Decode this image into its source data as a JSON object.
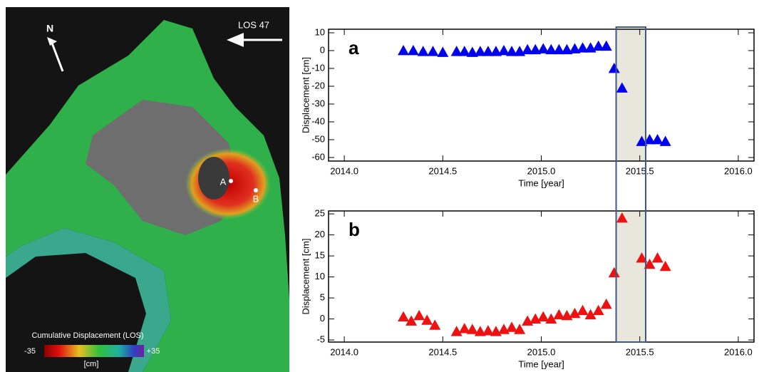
{
  "map": {
    "north": "N",
    "los": "LOS 47",
    "points": [
      "A",
      "B"
    ],
    "colorbar": {
      "title": "Cumulative Displacement (LOS)",
      "ticks": [
        -35,
        {
          "value": 35,
          "label": "+35"
        }
      ],
      "unit": "[cm]"
    }
  },
  "chart_data": [
    {
      "type": "scatter",
      "panel": "a",
      "xlabel": "Time [year]",
      "ylabel": "Displacement [cm]",
      "color": "#0000ee",
      "xlim": [
        2013.92,
        2016.08
      ],
      "xticks": [
        {
          "value": 2014,
          "label": "2014.0"
        },
        {
          "value": 2014.5,
          "label": "2014.5"
        },
        {
          "value": 2015,
          "label": "2015.0"
        },
        {
          "value": 2015.5,
          "label": "2015.5"
        },
        {
          "value": 2016,
          "label": "2016.0"
        }
      ],
      "ylim": [
        -62,
        12
      ],
      "yticks": [
        10,
        0,
        -10,
        -20,
        -30,
        -40,
        -50,
        -60
      ],
      "span": [
        2015.38,
        2015.53
      ],
      "x": [
        2014.3,
        2014.35,
        2014.4,
        2014.45,
        2014.5,
        2014.57,
        2014.61,
        2014.65,
        2014.69,
        2014.73,
        2014.77,
        2014.81,
        2014.85,
        2014.89,
        2014.93,
        2014.97,
        2015.01,
        2015.05,
        2015.09,
        2015.13,
        2015.17,
        2015.21,
        2015.25,
        2015.29,
        2015.33,
        2015.37,
        2015.41,
        2015.51,
        2015.55,
        2015.59,
        2015.63
      ],
      "values": [
        0,
        0,
        -0.5,
        -0.5,
        -1,
        -0.5,
        -0.5,
        -1,
        -0.5,
        -0.5,
        -0.5,
        0,
        -0.5,
        -0.5,
        0.5,
        0.5,
        1,
        0.5,
        0.5,
        0.5,
        1,
        1.5,
        1.5,
        2.5,
        2.5,
        -10,
        -21,
        -51,
        -50,
        -50,
        -51
      ]
    },
    {
      "type": "scatter",
      "panel": "b",
      "xlabel": "Time [year]",
      "ylabel": "Displacement [cm]",
      "color": "#ee1111",
      "xlim": [
        2013.92,
        2016.08
      ],
      "xticks": [
        {
          "value": 2014,
          "label": "2014.0"
        },
        {
          "value": 2014.5,
          "label": "2014.5"
        },
        {
          "value": 2015,
          "label": "2015.0"
        },
        {
          "value": 2015.5,
          "label": "2015.5"
        },
        {
          "value": 2016,
          "label": "2016.0"
        }
      ],
      "ylim": [
        -5.5,
        25.7
      ],
      "yticks": [
        25,
        20,
        15,
        10,
        5,
        0,
        -5
      ],
      "span": [
        2015.38,
        2015.53
      ],
      "x": [
        2014.3,
        2014.34,
        2014.38,
        2014.42,
        2014.46,
        2014.57,
        2014.61,
        2014.65,
        2014.69,
        2014.73,
        2014.77,
        2014.81,
        2014.85,
        2014.89,
        2014.93,
        2014.97,
        2015.01,
        2015.05,
        2015.09,
        2015.13,
        2015.17,
        2015.21,
        2015.25,
        2015.29,
        2015.33,
        2015.37,
        2015.41,
        2015.51,
        2015.55,
        2015.59,
        2015.63
      ],
      "values": [
        0.5,
        -0.5,
        0.8,
        -0.3,
        -1.5,
        -3,
        -2.3,
        -2.5,
        -3,
        -2.8,
        -3,
        -2.5,
        -2,
        -2.5,
        -0.5,
        0,
        0.5,
        0,
        1,
        0.8,
        1.3,
        2,
        1,
        2,
        3.5,
        11,
        24,
        14.5,
        13,
        14.5,
        12.5
      ]
    }
  ]
}
